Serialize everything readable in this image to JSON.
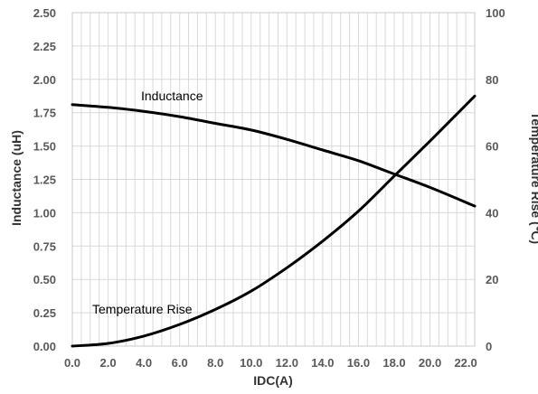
{
  "chart_data": {
    "type": "line",
    "xlabel": "IDC(A)",
    "ylabel_left": "Inductance   (uH)",
    "ylabel_right": "Temperature Rise (℃)",
    "xlim": [
      0,
      22.5
    ],
    "ylim_left": [
      0,
      2.5
    ],
    "ylim_right": [
      0,
      100
    ],
    "x_ticks": [
      "0.0",
      "2.0",
      "4.0",
      "6.0",
      "8.0",
      "10.0",
      "12.0",
      "14.0",
      "16.0",
      "18.0",
      "20.0",
      "22.0"
    ],
    "y_left_ticks": [
      "0.00",
      "0.25",
      "0.50",
      "0.75",
      "1.00",
      "1.25",
      "1.50",
      "1.75",
      "2.00",
      "2.25",
      "2.50"
    ],
    "y_right_ticks": [
      "0",
      "20",
      "40",
      "60",
      "80",
      "100"
    ],
    "grid": true,
    "annotations": [
      "Inductance",
      "Temperature Rise"
    ],
    "series": [
      {
        "name": "Inductance",
        "axis": "left",
        "x": [
          0,
          2,
          4,
          6,
          8,
          10,
          12,
          14,
          16,
          18,
          20,
          22.5
        ],
        "values": [
          1.81,
          1.79,
          1.76,
          1.72,
          1.67,
          1.62,
          1.55,
          1.47,
          1.39,
          1.29,
          1.19,
          1.05
        ]
      },
      {
        "name": "Temperature Rise",
        "axis": "right",
        "x": [
          0,
          2,
          4,
          6,
          8,
          10,
          12,
          14,
          16,
          18,
          20,
          22.5
        ],
        "values": [
          0,
          0.8,
          3,
          6.5,
          11,
          16.5,
          23.5,
          31.5,
          40.5,
          51,
          61.5,
          75
        ]
      }
    ]
  }
}
